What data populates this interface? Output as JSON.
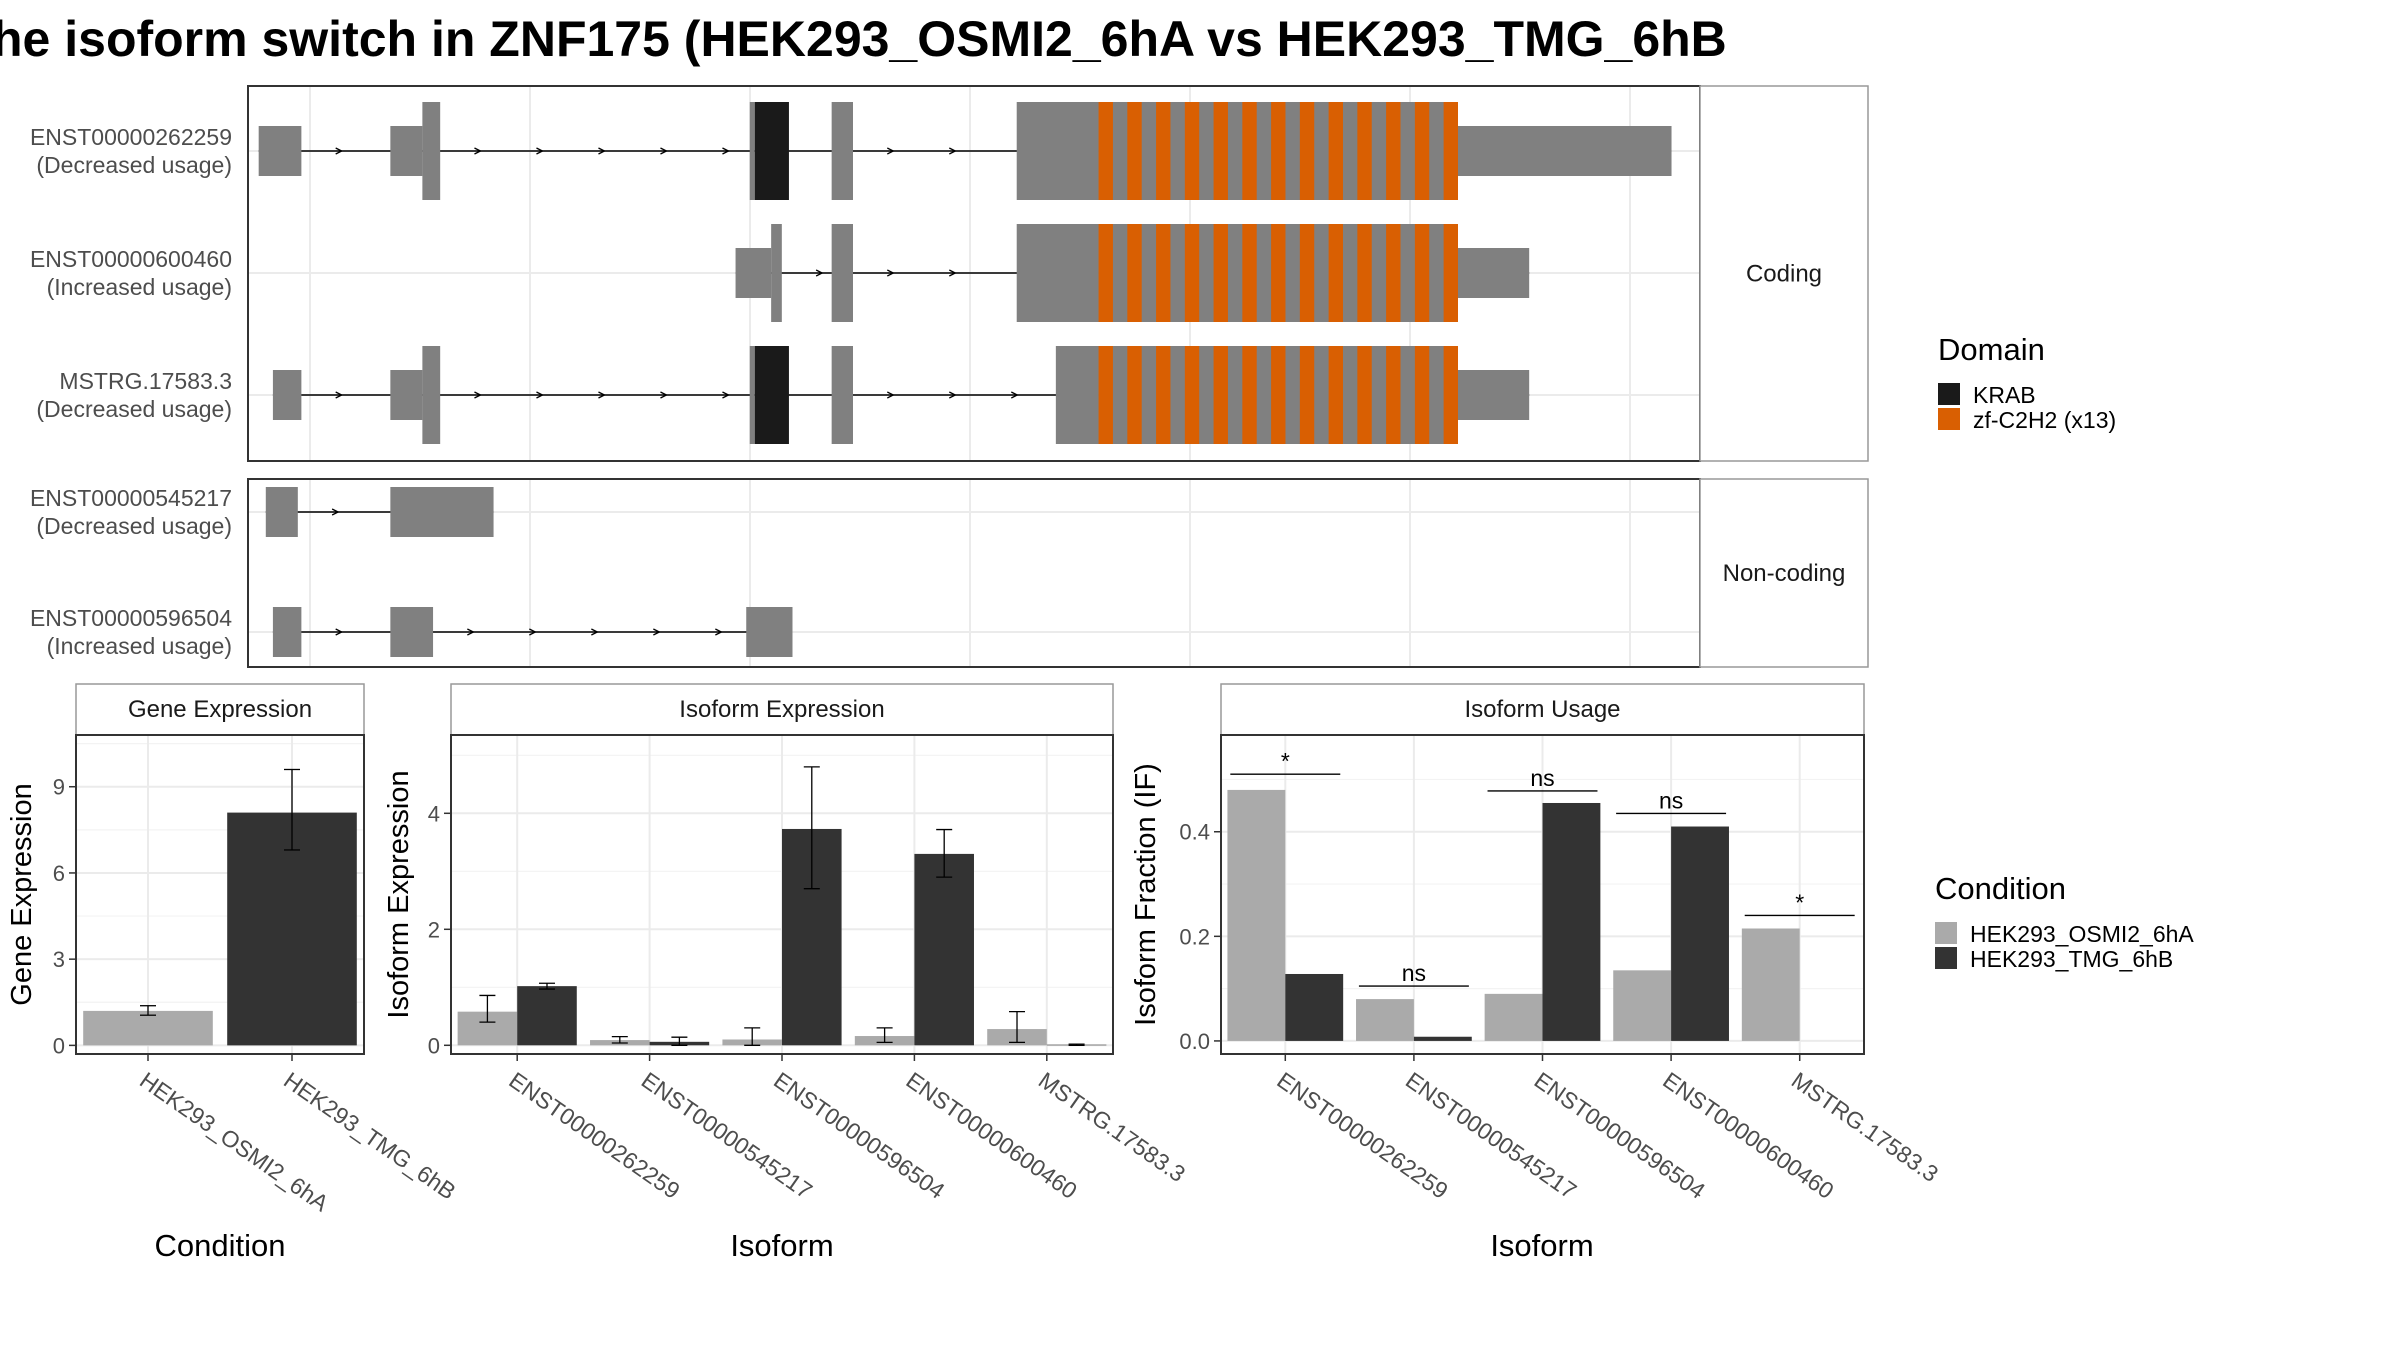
{
  "title": "he isoform switch in ZNF175 (HEK293_OSMI2_6hA vs HEK293_TMG_6hB",
  "colors": {
    "exon": "#808080",
    "krab": "#1a1a1a",
    "zf": "#d95f02",
    "cond_a": "#aaaaaa",
    "cond_b": "#333333",
    "panel_border": "#333333",
    "strip_border": "#999999",
    "grid": "#ebebeb"
  },
  "legend_domain": {
    "title": "Domain",
    "items": [
      {
        "label": "KRAB",
        "color": "#1a1a1a"
      },
      {
        "label": "zf-C2H2 (x13)",
        "color": "#d95f02"
      }
    ]
  },
  "legend_condition": {
    "title": "Condition",
    "items": [
      {
        "label": "HEK293_OSMI2_6hA",
        "color": "#aaaaaa"
      },
      {
        "label": "HEK293_TMG_6hB",
        "color": "#333333"
      }
    ]
  },
  "structure": {
    "coding": {
      "strip": "Coding",
      "transcripts": [
        {
          "label": "ENST00000262259\n(Decreased usage)",
          "exons": [
            [
              15,
              75,
              "utr"
            ],
            [
              200,
              245,
              "utr"
            ],
            [
              245,
              270,
              "cds"
            ],
            [
              705,
              712,
              "cds"
            ],
            [
              712,
              760,
              "krab"
            ],
            [
              820,
              850,
              "cds"
            ],
            [
              1080,
              1195,
              "cds"
            ],
            [
              1195,
              1700,
              "zf"
            ],
            [
              1700,
              2000,
              "utr"
            ]
          ]
        },
        {
          "label": "ENST00000600460\n(Increased usage)",
          "exons": [
            [
              685,
              735,
              "utr"
            ],
            [
              735,
              750,
              "cds"
            ],
            [
              820,
              850,
              "cds"
            ],
            [
              1080,
              1195,
              "cds"
            ],
            [
              1195,
              1700,
              "zf"
            ],
            [
              1700,
              1800,
              "utr"
            ]
          ]
        },
        {
          "label": "MSTRG.17583.3\n(Decreased usage)",
          "exons": [
            [
              35,
              75,
              "utr"
            ],
            [
              200,
              245,
              "utr"
            ],
            [
              245,
              270,
              "cds"
            ],
            [
              705,
              712,
              "cds"
            ],
            [
              712,
              760,
              "krab"
            ],
            [
              820,
              850,
              "cds"
            ],
            [
              1135,
              1195,
              "cds"
            ],
            [
              1195,
              1700,
              "zf"
            ],
            [
              1700,
              1800,
              "utr"
            ]
          ]
        }
      ]
    },
    "noncoding": {
      "strip": "Non-coding",
      "transcripts": [
        {
          "label": "ENST00000545217\n(Decreased usage)",
          "exons": [
            [
              25,
              70,
              "utr"
            ],
            [
              200,
              345,
              "utr"
            ]
          ]
        },
        {
          "label": "ENST00000596504\n(Increased usage)",
          "exons": [
            [
              35,
              75,
              "utr"
            ],
            [
              200,
              260,
              "utr"
            ],
            [
              700,
              765,
              "utr"
            ]
          ]
        }
      ]
    }
  },
  "chart_data": [
    {
      "type": "bar",
      "title": "Gene Expression",
      "xlabel": "Condition",
      "ylabel": "Gene Expression",
      "ylim": [
        -0.3,
        10.8
      ],
      "yticks": [
        0,
        3,
        6,
        9
      ],
      "categories": [
        "HEK293_OSMI2_6hA",
        "HEK293_TMG_6hB"
      ],
      "bars": [
        {
          "category": "HEK293_OSMI2_6hA",
          "condition": "HEK293_OSMI2_6hA",
          "value": 1.2,
          "err": [
            1.05,
            1.38
          ]
        },
        {
          "category": "HEK293_TMG_6hB",
          "condition": "HEK293_TMG_6hB",
          "value": 8.1,
          "err": [
            6.8,
            9.6
          ]
        }
      ]
    },
    {
      "type": "bar",
      "title": "Isoform Expression",
      "xlabel": "Isoform",
      "ylabel": "Isoform Expression",
      "ylim": [
        -0.15,
        5.35
      ],
      "yticks": [
        0,
        2,
        4
      ],
      "categories": [
        "ENST00000262259",
        "ENST00000545217",
        "ENST00000596504",
        "ENST00000600460",
        "MSTRG.17583.3"
      ],
      "series": [
        {
          "name": "HEK293_OSMI2_6hA",
          "values": [
            0.58,
            0.09,
            0.1,
            0.16,
            0.28
          ],
          "err": [
            [
              0.4,
              0.86
            ],
            [
              0.04,
              0.15
            ],
            [
              0.0,
              0.3
            ],
            [
              0.05,
              0.3
            ],
            [
              0.05,
              0.58
            ]
          ]
        },
        {
          "name": "HEK293_TMG_6hB",
          "values": [
            1.02,
            0.06,
            3.73,
            3.3,
            0.01
          ],
          "err": [
            [
              0.97,
              1.07
            ],
            [
              0.0,
              0.14
            ],
            [
              2.7,
              4.8
            ],
            [
              2.9,
              3.72
            ],
            [
              0.0,
              0.02
            ]
          ]
        }
      ]
    },
    {
      "type": "bar",
      "title": "Isoform Usage",
      "xlabel": "Isoform",
      "ylabel": "Isoform Fraction (IF)",
      "ylim": [
        -0.025,
        0.585
      ],
      "yticks": [
        "0.0",
        "0.2",
        "0.4"
      ],
      "categories": [
        "ENST00000262259",
        "ENST00000545217",
        "ENST00000596504",
        "ENST00000600460",
        "MSTRG.17583.3"
      ],
      "series": [
        {
          "name": "HEK293_OSMI2_6hA",
          "values": [
            0.48,
            0.08,
            0.09,
            0.135,
            0.215
          ]
        },
        {
          "name": "HEK293_TMG_6hB",
          "values": [
            0.128,
            0.008,
            0.455,
            0.41,
            0.0
          ]
        }
      ],
      "significance": [
        "*",
        "ns",
        "ns",
        "ns",
        "*"
      ],
      "sig_height": [
        0.51,
        0.105,
        0.478,
        0.435,
        0.24
      ]
    }
  ]
}
